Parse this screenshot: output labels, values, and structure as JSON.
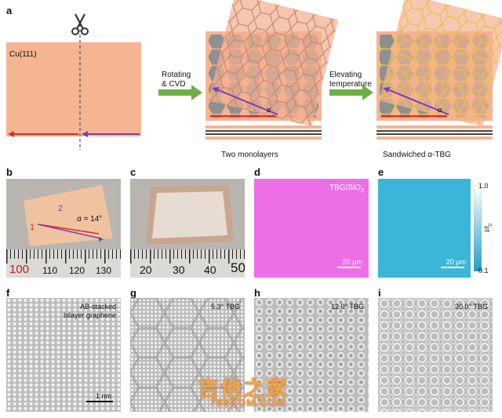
{
  "panel_labels": {
    "a": "a",
    "b": "b",
    "c": "c",
    "d": "d",
    "e": "e",
    "f": "f",
    "g": "g",
    "h": "h",
    "i": "i"
  },
  "panel_a": {
    "substrate": "Cu(111)",
    "step1": [
      "Rotating",
      "& CVD"
    ],
    "step2": [
      "Elevating",
      "temperature"
    ],
    "caption_mid": "Two monolayers",
    "caption_right": "Sandwiched α-TBG",
    "angle_symbol": "α",
    "colors": {
      "copper": "#f6b493",
      "arrow_red": "#e8262b",
      "arrow_purple": "#7a3fb0",
      "arrow_green": "#6fae45",
      "graphene_grey": "#8f8f8f",
      "yellow_lattice": "#e7c14a"
    }
  },
  "panel_b": {
    "region1": "1",
    "region2": "2",
    "angle": "α = 14°",
    "ruler_numbers": [
      "100",
      "110",
      "120",
      "130"
    ]
  },
  "panel_c": {
    "ruler_numbers": [
      "20",
      "30",
      "40",
      "50"
    ]
  },
  "panel_d": {
    "label": "TBG/SiO",
    "label_sub": "2",
    "scale": "20 μm",
    "color": "#ee6ee8"
  },
  "panel_e": {
    "scale": "20 μm",
    "cbar_max": "1.0",
    "cbar_min": "0.1",
    "cbar_label": "I/I",
    "cbar_label_sub": "0",
    "color": "#3bb6d8"
  },
  "panel_f": {
    "label": [
      "AB-stacked",
      "bilayer graphene"
    ],
    "scale": "1 nm"
  },
  "panel_g": {
    "label": "5.3° TBG"
  },
  "panel_h": {
    "label": "12.0° TBG"
  },
  "panel_i": {
    "label": "30.0° TBG"
  },
  "watermark": {
    "cn": "吉他之家",
    "url": "798COM.COM"
  }
}
